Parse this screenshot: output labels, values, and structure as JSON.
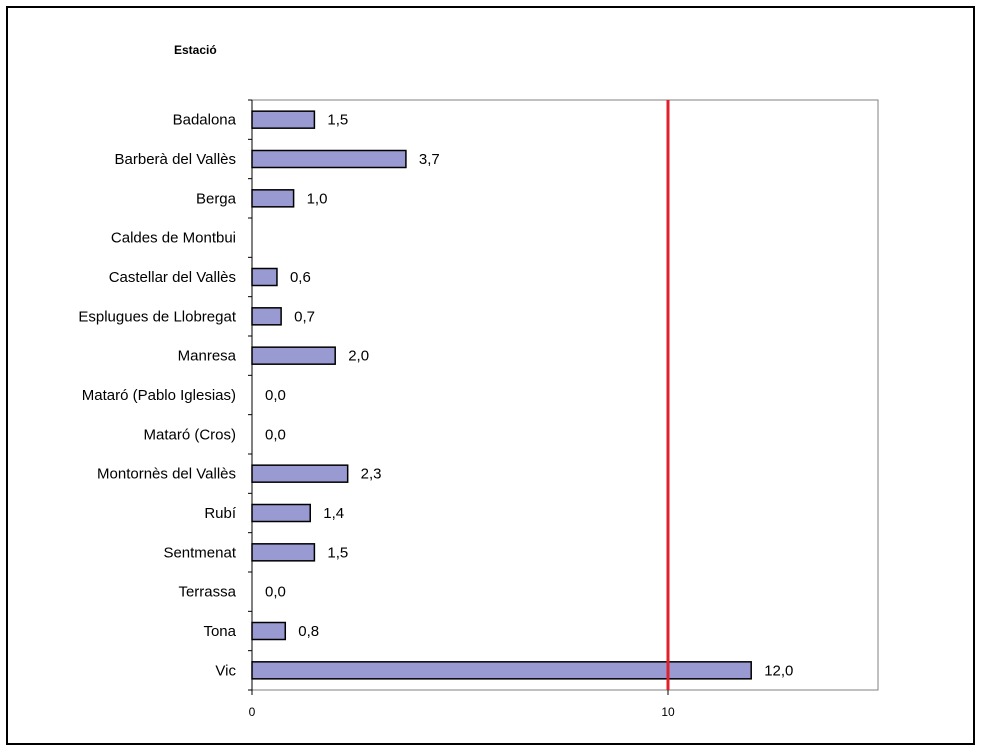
{
  "chart_data": {
    "type": "bar",
    "orientation": "horizontal",
    "title": "",
    "ylabel": "Estació",
    "xlabel": "",
    "categories": [
      "Badalona",
      "Barberà del Vallès",
      "Berga",
      "Caldes de Montbui",
      "Castellar del Vallès",
      "Esplugues de Llobregat",
      "Manresa",
      "Mataró (Pablo Iglesias)",
      "Mataró (Cros)",
      "Montornès del Vallès",
      "Rubí",
      "Sentmenat",
      "Terrassa",
      "Tona",
      "Vic"
    ],
    "values": [
      1.5,
      3.7,
      1.0,
      null,
      0.6,
      0.7,
      2.0,
      0.0,
      0.0,
      2.3,
      1.4,
      1.5,
      0.0,
      0.8,
      12.0
    ],
    "value_labels": [
      "1,5",
      "3,7",
      "1,0",
      "",
      "0,6",
      "0,7",
      "2,0",
      "0,0",
      "0,0",
      "2,3",
      "1,4",
      "1,5",
      "0,0",
      "0,8",
      "12,0"
    ],
    "xlim": [
      0,
      15
    ],
    "x_ticks": [
      0,
      10
    ],
    "x_tick_labels": [
      "0",
      "10"
    ],
    "reference_line": {
      "value": 10,
      "color": "#e0202a"
    },
    "bar_color": "#9a9ad2",
    "bar_edge_color": "#000000",
    "grid": false,
    "legend": "none"
  }
}
